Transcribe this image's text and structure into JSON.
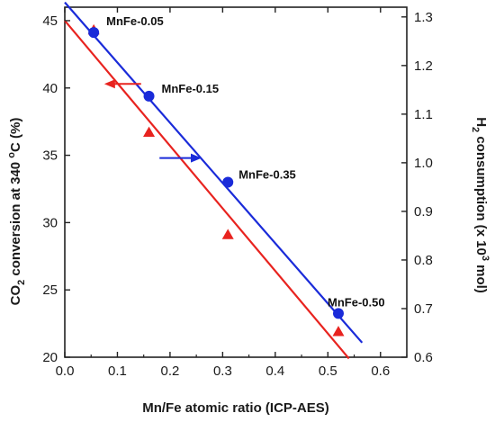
{
  "chart_data": {
    "type": "scatter",
    "xlabel": "Mn/Fe atomic ratio (ICP-AES)",
    "ylabel_left": {
      "base": "CO",
      "sub": "2",
      "rest": " conversion at 340 ",
      "sup": "o",
      "end": "C (%)"
    },
    "ylabel_right": {
      "base": "H",
      "sub": "2",
      "rest": " consumption (x 10",
      "sup": "3",
      "end": " mol)"
    },
    "xlim": [
      0.0,
      0.65
    ],
    "ylim_left": [
      20,
      46
    ],
    "ylim_right": [
      0.6,
      1.32
    ],
    "xticks": [
      "0.0",
      "0.1",
      "0.2",
      "0.3",
      "0.4",
      "0.5",
      "0.6"
    ],
    "yticks_left": [
      "20",
      "25",
      "30",
      "35",
      "40",
      "45"
    ],
    "yticks_right": [
      "0.6",
      "0.7",
      "0.8",
      "0.9",
      "1.0",
      "1.1",
      "1.2",
      "1.3"
    ],
    "series": [
      {
        "axis": "left",
        "marker": "triangle",
        "color": "#e8231f",
        "x": [
          0.055,
          0.16,
          0.31,
          0.52
        ],
        "y": [
          44.3,
          36.7,
          29.1,
          21.9
        ],
        "fit": {
          "x": [
            0.0,
            0.54
          ],
          "y": [
            45.0,
            19.9
          ]
        }
      },
      {
        "axis": "right",
        "marker": "circle",
        "color": "#1a2bd9",
        "x": [
          0.055,
          0.16,
          0.31,
          0.52
        ],
        "y": [
          1.268,
          1.137,
          0.96,
          0.69
        ],
        "fit": {
          "x": [
            0.0,
            0.565
          ],
          "y": [
            1.33,
            0.63
          ]
        }
      }
    ],
    "annotations": [
      "MnFe-0.05",
      "MnFe-0.15",
      "MnFe-0.35",
      "MnFe-0.50"
    ],
    "arrows": [
      {
        "points_to": "left",
        "color": "#e8231f"
      },
      {
        "points_to": "right",
        "color": "#1a2bd9"
      }
    ]
  }
}
